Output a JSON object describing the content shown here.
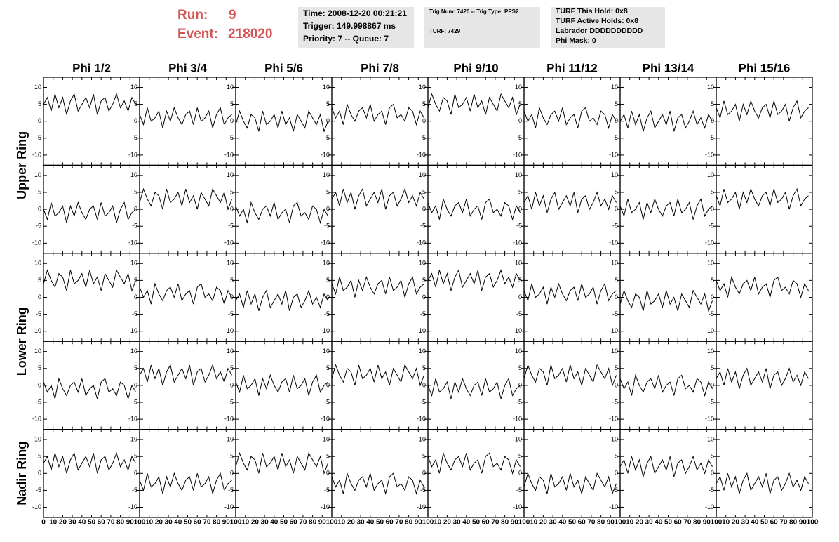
{
  "header": {
    "run_label": "Run:",
    "run": "9",
    "event_label": "Event:",
    "event": "218020",
    "time": "Time: 2008-12-20 00:21:21",
    "trigger": "Trigger: 149.998867 ms",
    "priority": "Priority: 7 -- Queue: 7",
    "trig_num": "Trig Num: 7420 -- Trig Type: PPS2",
    "turf": "TURF: 7429",
    "turf_this_hold": "TURF This Hold: 0x8",
    "turf_active_holds": "TURF Active Holds: 0x8",
    "labrador": "Labrador DDDDDDDDDD",
    "phi_mask": "Phi Mask: 0"
  },
  "chart_data": {
    "type": "line",
    "color": "#000000",
    "columns": [
      "Phi 1/2",
      "Phi 3/4",
      "Phi 5/6",
      "Phi 7/8",
      "Phi 9/10",
      "Phi 11/12",
      "Phi 13/14",
      "Phi 15/16"
    ],
    "row_groups": [
      {
        "label": "Upper Ring",
        "rows": 2
      },
      {
        "label": "Lower Ring",
        "rows": 2
      },
      {
        "label": "Nadir Ring",
        "rows": 1
      }
    ],
    "xlim": [
      0,
      100
    ],
    "xticks": [
      0,
      10,
      20,
      30,
      40,
      50,
      60,
      70,
      80,
      90,
      100
    ],
    "ylim": [
      -13,
      13
    ],
    "yticks": [
      -10,
      -5,
      0,
      5,
      10
    ],
    "x": [
      0,
      4,
      8,
      12,
      16,
      20,
      24,
      28,
      32,
      36,
      40,
      44,
      48,
      52,
      56,
      60,
      64,
      68,
      72,
      76,
      80,
      84,
      88,
      92,
      96
    ],
    "series": [
      {
        "values": [
          5,
          7,
          3,
          8,
          4,
          7,
          2,
          6,
          8,
          3,
          5,
          7,
          4,
          8,
          2,
          6,
          7,
          3,
          5,
          8,
          4,
          6,
          3,
          7,
          5
        ]
      },
      {
        "values": [
          2,
          -1,
          4,
          0,
          1,
          3,
          -2,
          3,
          0,
          4,
          1,
          -1,
          2,
          3,
          -1,
          4,
          0,
          1,
          3,
          -2,
          2,
          4,
          -1,
          1,
          2
        ]
      },
      {
        "values": [
          -1,
          3,
          0,
          -2,
          2,
          1,
          -3,
          3,
          -1,
          0,
          2,
          -2,
          3,
          -1,
          1,
          -3,
          2,
          0,
          -2,
          3,
          1,
          -1,
          2,
          -3,
          0
        ]
      },
      {
        "values": [
          4,
          1,
          3,
          -1,
          5,
          2,
          0,
          3,
          4,
          1,
          5,
          0,
          2,
          3,
          -1,
          4,
          5,
          1,
          2,
          0,
          4,
          3,
          -1,
          3,
          1
        ]
      },
      {
        "values": [
          4,
          8,
          5,
          3,
          7,
          6,
          2,
          8,
          4,
          5,
          7,
          3,
          8,
          4,
          6,
          2,
          7,
          5,
          3,
          8,
          6,
          4,
          7,
          2,
          5
        ]
      },
      {
        "values": [
          3,
          0,
          2,
          -2,
          4,
          1,
          -1,
          2,
          3,
          0,
          4,
          -1,
          1,
          2,
          -2,
          3,
          4,
          0,
          1,
          -1,
          3,
          2,
          -2,
          2,
          0
        ]
      },
      {
        "values": [
          0,
          2,
          -2,
          3,
          -1,
          2,
          -3,
          1,
          3,
          -2,
          0,
          2,
          -1,
          3,
          -3,
          1,
          2,
          -2,
          0,
          3,
          -1,
          1,
          -2,
          2,
          0
        ]
      },
      {
        "values": [
          4,
          1,
          6,
          2,
          3,
          5,
          0,
          5,
          2,
          6,
          3,
          1,
          4,
          5,
          1,
          6,
          2,
          3,
          5,
          0,
          4,
          6,
          1,
          3,
          4
        ]
      },
      {
        "values": [
          0,
          -3,
          2,
          -2,
          -1,
          1,
          -4,
          1,
          -2,
          2,
          -1,
          -3,
          0,
          1,
          -3,
          2,
          -2,
          -1,
          1,
          -4,
          0,
          2,
          -3,
          -1,
          0
        ]
      },
      {
        "values": [
          2,
          6,
          3,
          1,
          5,
          4,
          0,
          6,
          2,
          3,
          5,
          1,
          6,
          2,
          4,
          0,
          5,
          3,
          1,
          6,
          4,
          2,
          5,
          0,
          3
        ]
      },
      {
        "values": [
          1,
          -2,
          0,
          -4,
          2,
          -1,
          -3,
          0,
          1,
          -2,
          2,
          -3,
          -1,
          0,
          -4,
          1,
          2,
          -2,
          -1,
          -3,
          1,
          0,
          -4,
          0,
          -2
        ]
      },
      {
        "values": [
          3,
          5,
          1,
          6,
          2,
          5,
          0,
          4,
          6,
          1,
          3,
          5,
          2,
          6,
          0,
          4,
          5,
          1,
          3,
          6,
          2,
          4,
          1,
          5,
          3
        ]
      },
      {
        "values": [
          2,
          -1,
          1,
          -3,
          3,
          0,
          -2,
          1,
          2,
          -1,
          3,
          -2,
          0,
          1,
          -3,
          2,
          3,
          -1,
          0,
          -2,
          2,
          1,
          -3,
          1,
          -1
        ]
      },
      {
        "values": [
          2,
          4,
          0,
          5,
          1,
          4,
          -1,
          3,
          5,
          0,
          2,
          4,
          1,
          5,
          -1,
          3,
          4,
          0,
          2,
          5,
          1,
          3,
          0,
          4,
          2
        ]
      },
      {
        "values": [
          1,
          -2,
          3,
          -1,
          0,
          2,
          -3,
          2,
          -1,
          3,
          0,
          -2,
          1,
          2,
          -2,
          3,
          -1,
          0,
          2,
          -3,
          1,
          3,
          -2,
          0,
          1
        ]
      },
      {
        "values": [
          4,
          1,
          6,
          2,
          3,
          5,
          0,
          5,
          2,
          6,
          3,
          1,
          4,
          5,
          1,
          6,
          2,
          3,
          5,
          0,
          4,
          6,
          1,
          3,
          4
        ]
      },
      {
        "values": [
          4,
          8,
          5,
          3,
          7,
          6,
          2,
          8,
          4,
          5,
          7,
          3,
          8,
          4,
          6,
          2,
          7,
          5,
          3,
          8,
          6,
          4,
          7,
          2,
          5
        ]
      },
      {
        "values": [
          3,
          0,
          2,
          -2,
          4,
          1,
          -1,
          2,
          3,
          0,
          4,
          -1,
          1,
          2,
          -2,
          3,
          4,
          0,
          1,
          -1,
          3,
          2,
          -2,
          2,
          0
        ]
      },
      {
        "values": [
          -1,
          1,
          -3,
          2,
          -2,
          1,
          -4,
          0,
          2,
          -3,
          -1,
          1,
          -2,
          2,
          -4,
          0,
          1,
          -3,
          -1,
          2,
          -2,
          0,
          -3,
          1,
          -1
        ]
      },
      {
        "values": [
          4,
          1,
          6,
          2,
          3,
          5,
          0,
          5,
          2,
          6,
          3,
          1,
          4,
          5,
          1,
          6,
          2,
          3,
          5,
          0,
          4,
          6,
          1,
          3,
          4
        ]
      },
      {
        "values": [
          5,
          7,
          3,
          8,
          4,
          7,
          2,
          6,
          8,
          3,
          5,
          7,
          4,
          8,
          2,
          6,
          7,
          3,
          5,
          8,
          4,
          6,
          3,
          7,
          5
        ]
      },
      {
        "values": [
          2,
          -1,
          4,
          0,
          1,
          3,
          -2,
          3,
          0,
          4,
          1,
          -1,
          2,
          3,
          -1,
          4,
          0,
          1,
          3,
          -2,
          2,
          4,
          -1,
          1,
          2
        ]
      },
      {
        "values": [
          -2,
          2,
          -1,
          -3,
          1,
          0,
          -4,
          2,
          -2,
          -1,
          1,
          -3,
          2,
          -2,
          0,
          -4,
          1,
          -1,
          -3,
          2,
          0,
          -2,
          1,
          -4,
          -1
        ]
      },
      {
        "values": [
          5,
          2,
          4,
          0,
          6,
          3,
          1,
          4,
          5,
          2,
          6,
          1,
          3,
          4,
          0,
          5,
          6,
          2,
          3,
          1,
          5,
          4,
          0,
          4,
          2
        ]
      },
      {
        "values": [
          1,
          -2,
          0,
          -4,
          2,
          -1,
          -3,
          0,
          1,
          -2,
          2,
          -3,
          -1,
          0,
          -4,
          1,
          2,
          -2,
          -1,
          -3,
          1,
          0,
          -4,
          0,
          -2
        ]
      },
      {
        "values": [
          3,
          5,
          1,
          6,
          2,
          5,
          0,
          4,
          6,
          1,
          3,
          5,
          2,
          6,
          0,
          4,
          5,
          1,
          3,
          6,
          2,
          4,
          1,
          5,
          3
        ]
      },
      {
        "values": [
          1,
          -2,
          3,
          -1,
          0,
          2,
          -3,
          2,
          -1,
          3,
          0,
          -2,
          1,
          2,
          -2,
          3,
          -1,
          0,
          2,
          -3,
          1,
          3,
          -2,
          0,
          1
        ]
      },
      {
        "values": [
          2,
          6,
          3,
          1,
          5,
          4,
          0,
          6,
          2,
          3,
          5,
          1,
          6,
          2,
          4,
          0,
          5,
          3,
          1,
          6,
          4,
          2,
          5,
          0,
          3
        ]
      },
      {
        "values": [
          0,
          -3,
          2,
          -2,
          -1,
          1,
          -4,
          1,
          -2,
          2,
          -1,
          -3,
          0,
          1,
          -3,
          2,
          -2,
          -1,
          1,
          -4,
          0,
          2,
          -3,
          -1,
          0
        ]
      },
      {
        "values": [
          2,
          6,
          3,
          1,
          5,
          4,
          0,
          6,
          2,
          3,
          5,
          1,
          6,
          2,
          4,
          0,
          5,
          3,
          1,
          6,
          4,
          2,
          5,
          0,
          3
        ]
      },
      {
        "values": [
          2,
          -1,
          1,
          -3,
          3,
          0,
          -2,
          1,
          2,
          -1,
          3,
          -2,
          0,
          1,
          -3,
          2,
          3,
          -1,
          0,
          -2,
          2,
          1,
          -3,
          1,
          -1
        ]
      },
      {
        "values": [
          2,
          4,
          0,
          5,
          1,
          4,
          -1,
          3,
          5,
          0,
          2,
          4,
          1,
          5,
          -1,
          3,
          4,
          0,
          2,
          5,
          1,
          3,
          0,
          4,
          2
        ]
      },
      {
        "values": [
          3,
          5,
          1,
          6,
          2,
          5,
          0,
          4,
          6,
          1,
          3,
          5,
          2,
          6,
          0,
          4,
          5,
          1,
          3,
          6,
          2,
          4,
          1,
          5,
          3
        ]
      },
      {
        "values": [
          -2,
          -5,
          0,
          -4,
          -3,
          -1,
          -6,
          -1,
          -4,
          0,
          -3,
          -5,
          -2,
          -1,
          -5,
          0,
          -4,
          -3,
          -1,
          -6,
          -2,
          0,
          -5,
          -3,
          -2
        ]
      },
      {
        "values": [
          2,
          6,
          3,
          1,
          5,
          4,
          0,
          6,
          2,
          3,
          5,
          1,
          6,
          2,
          4,
          0,
          5,
          3,
          1,
          6,
          4,
          2,
          5,
          0,
          3
        ]
      },
      {
        "values": [
          -1,
          -4,
          -2,
          -6,
          0,
          -3,
          -5,
          -2,
          -1,
          -4,
          0,
          -5,
          -3,
          -2,
          -6,
          -1,
          0,
          -4,
          -3,
          -5,
          -1,
          -2,
          -6,
          -2,
          -4
        ]
      },
      {
        "values": [
          5,
          2,
          4,
          0,
          6,
          3,
          1,
          4,
          5,
          2,
          6,
          1,
          3,
          4,
          0,
          5,
          6,
          2,
          3,
          1,
          5,
          4,
          0,
          4,
          2
        ]
      },
      {
        "values": [
          -4,
          0,
          -3,
          -5,
          -1,
          -2,
          -6,
          0,
          -4,
          -3,
          -1,
          -5,
          0,
          -4,
          -2,
          -6,
          -1,
          -3,
          -5,
          0,
          -2,
          -4,
          -1,
          -6,
          -3
        ]
      },
      {
        "values": [
          2,
          4,
          0,
          5,
          1,
          4,
          -1,
          3,
          5,
          0,
          2,
          4,
          1,
          5,
          -1,
          3,
          4,
          0,
          2,
          5,
          1,
          3,
          0,
          4,
          2
        ]
      },
      {
        "values": [
          -3,
          -1,
          -5,
          0,
          -4,
          -1,
          -6,
          -2,
          0,
          -5,
          -3,
          -1,
          -4,
          0,
          -6,
          -2,
          -1,
          -5,
          -3,
          0,
          -4,
          -2,
          -5,
          -1,
          -3
        ]
      }
    ]
  }
}
